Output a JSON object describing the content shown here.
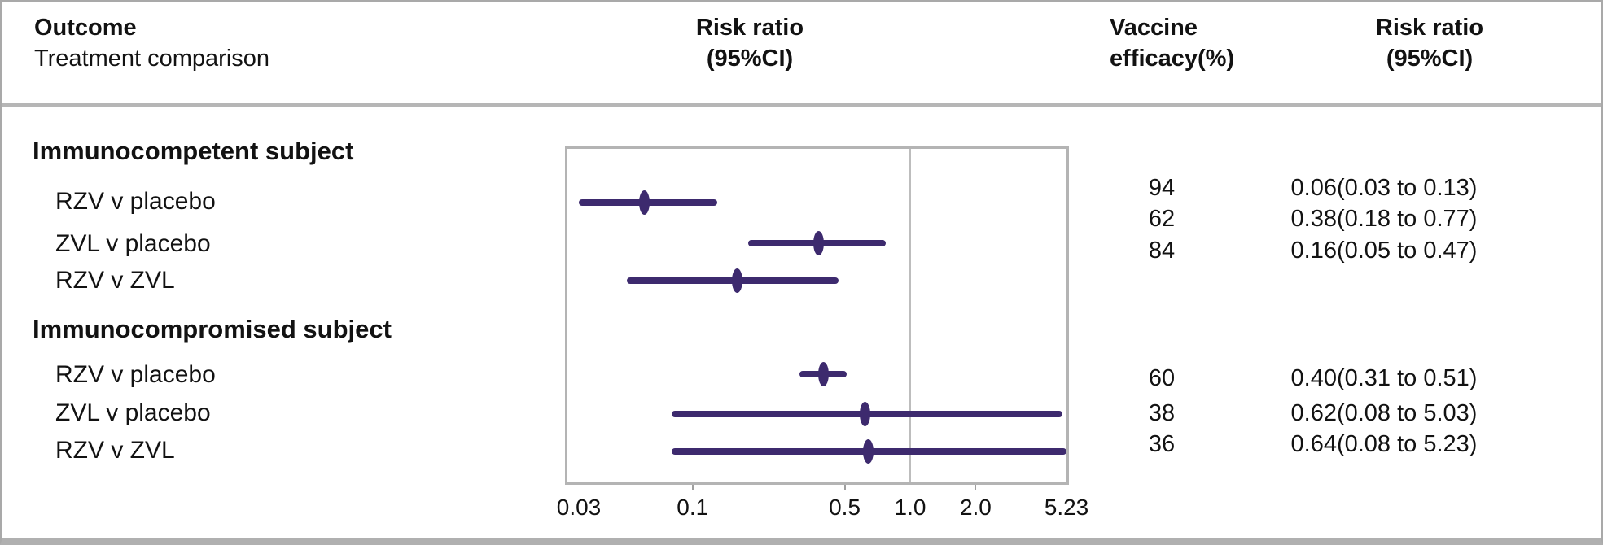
{
  "header": {
    "outcome": "Outcome",
    "treatment_comparison": "Treatment comparison",
    "risk_ratio_line1": "Risk ratio",
    "risk_ratio_line2": "(95%CI)",
    "vaccine_line1": "Vaccine",
    "vaccine_line2": "efficacy(%)"
  },
  "colors": {
    "accent": "#3d2a6e",
    "plot_border": "#b4b4b4",
    "reference_line": "#bdbdbd",
    "frame_border": "#a9a9a9"
  },
  "chart_data": {
    "type": "forest",
    "x_scale": "log",
    "xlim": [
      0.03,
      5.23
    ],
    "reference_line": 1.0,
    "x_ticks": [
      {
        "label": "0.03",
        "value": 0.03
      },
      {
        "label": "0.1",
        "value": 0.1
      },
      {
        "label": "0.5",
        "value": 0.5
      },
      {
        "label": "1.0",
        "value": 1.0
      },
      {
        "label": "2.0",
        "value": 2.0
      },
      {
        "label": "5.23",
        "value": 5.23
      }
    ],
    "groups": [
      {
        "label": "Immunocompetent subject",
        "rows": [
          {
            "label": "RZV v placebo",
            "rr": 0.06,
            "ci_low": 0.03,
            "ci_high": 0.13,
            "efficacy": "94",
            "rr_text": "0.06(0.03 to 0.13)"
          },
          {
            "label": "ZVL v placebo",
            "rr": 0.38,
            "ci_low": 0.18,
            "ci_high": 0.77,
            "efficacy": "62",
            "rr_text": "0.38(0.18 to 0.77)"
          },
          {
            "label": "RZV v ZVL",
            "rr": 0.16,
            "ci_low": 0.05,
            "ci_high": 0.47,
            "efficacy": "84",
            "rr_text": "0.16(0.05 to 0.47)"
          }
        ]
      },
      {
        "label": "Immunocompromised subject",
        "rows": [
          {
            "label": "RZV v placebo",
            "rr": 0.4,
            "ci_low": 0.31,
            "ci_high": 0.51,
            "efficacy": "60",
            "rr_text": "0.40(0.31 to 0.51)"
          },
          {
            "label": "ZVL v placebo",
            "rr": 0.62,
            "ci_low": 0.08,
            "ci_high": 5.03,
            "efficacy": "38",
            "rr_text": "0.62(0.08 to 5.03)"
          },
          {
            "label": "RZV v ZVL",
            "rr": 0.64,
            "ci_low": 0.08,
            "ci_high": 5.23,
            "efficacy": "36",
            "rr_text": "0.64(0.08 to 5.23)"
          }
        ]
      }
    ]
  }
}
